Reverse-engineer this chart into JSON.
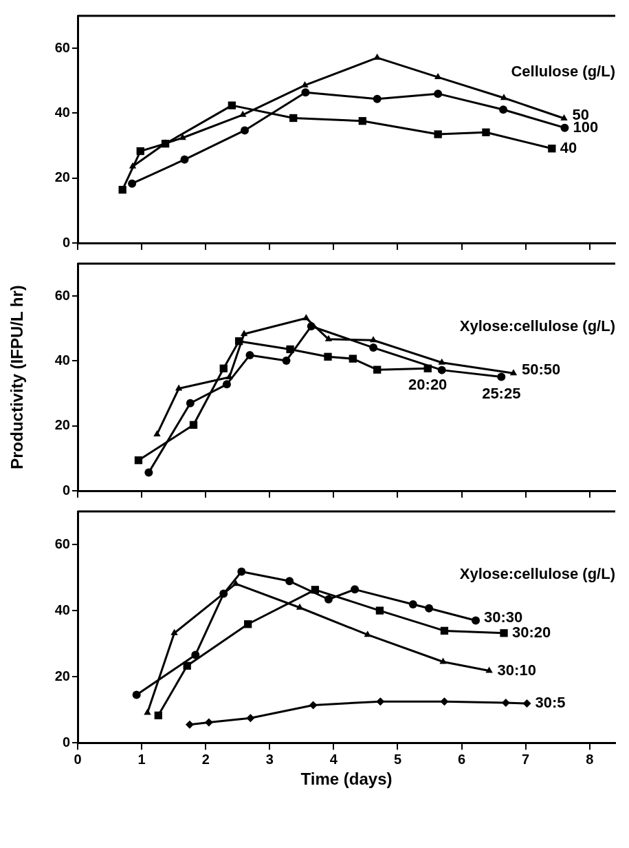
{
  "chart_data": [
    {
      "type": "line",
      "legend_title": "Cellulose (g/L)",
      "xlim": [
        0,
        8.4
      ],
      "xticks": [
        0,
        1,
        2,
        3,
        4,
        5,
        6,
        7,
        8
      ],
      "ylim": [
        0,
        70
      ],
      "yticks": [
        0,
        20,
        40,
        60
      ],
      "tick_labels": "y",
      "line_style": "solid",
      "series": [
        {
          "name": "50",
          "color": "#000000",
          "marker": "triangle",
          "x": [
            0.86,
            1.37,
            1.64,
            2.58,
            3.55,
            4.68,
            5.63,
            6.66,
            7.6
          ],
          "values": [
            23.6,
            30.7,
            32.4,
            39.5,
            48.6,
            57.1,
            51.1,
            44.7,
            38.4
          ]
        },
        {
          "name": "100",
          "color": "#000000",
          "marker": "circle",
          "x": [
            0.85,
            1.67,
            2.61,
            3.56,
            4.68,
            5.63,
            6.65,
            7.61
          ],
          "values": [
            18.3,
            25.7,
            34.7,
            46.4,
            44.4,
            46,
            41.1,
            35.5
          ]
        },
        {
          "name": "40",
          "color": "#000000",
          "marker": "square",
          "x": [
            0.7,
            0.98,
            1.37,
            2.41,
            3.37,
            4.45,
            5.63,
            6.38,
            7.41
          ],
          "values": [
            16.4,
            28.3,
            30.6,
            42.4,
            38.5,
            37.6,
            33.5,
            34.1,
            29.1
          ]
        }
      ]
    },
    {
      "type": "line",
      "legend_title": "Xylose:cellulose (g/L)",
      "ylabel": "Productivity (IFPU/L hr)",
      "xlim": [
        0,
        8.4
      ],
      "xticks": [
        0,
        1,
        2,
        3,
        4,
        5,
        6,
        7,
        8
      ],
      "ylim": [
        0,
        70
      ],
      "yticks": [
        0,
        20,
        40,
        60
      ],
      "tick_labels": "y",
      "line_style": "solid",
      "series": [
        {
          "name": "50:50",
          "color": "#000000",
          "marker": "triangle",
          "x": [
            1.24,
            1.58,
            2.37,
            2.6,
            3.57,
            3.92,
            4.62,
            5.69,
            6.81
          ],
          "values": [
            17.4,
            31.5,
            35,
            48.3,
            53.2,
            46.7,
            46.4,
            39.5,
            36.2
          ]
        },
        {
          "name": "20:20",
          "color": "#000000",
          "marker": "square",
          "x": [
            0.95,
            1.81,
            2.28,
            2.52,
            3.32,
            3.91,
            4.3,
            4.68,
            5.47
          ],
          "values": [
            9.4,
            20.3,
            37.7,
            46.1,
            43.6,
            41.3,
            40.7,
            37.3,
            37.7
          ]
        },
        {
          "name": "25:25",
          "color": "#000000",
          "marker": "circle",
          "x": [
            1.11,
            1.76,
            2.33,
            2.69,
            3.26,
            3.65,
            4.62,
            5.69,
            6.62
          ],
          "values": [
            5.6,
            27,
            32.8,
            41.8,
            40.1,
            50.7,
            44.1,
            37.2,
            35.1
          ]
        }
      ]
    },
    {
      "type": "line",
      "legend_title": "Xylose:cellulose (g/L)",
      "xlabel": "Time (days)",
      "xlim": [
        0,
        8.4
      ],
      "xticks": [
        0,
        1,
        2,
        3,
        4,
        5,
        6,
        7,
        8
      ],
      "ylim": [
        0,
        70
      ],
      "yticks": [
        0,
        20,
        40,
        60
      ],
      "line_style": "solid",
      "series": [
        {
          "name": "30:30",
          "color": "#000000",
          "marker": "circle",
          "x": [
            0.92,
            1.84,
            2.28,
            2.56,
            3.31,
            3.92,
            4.33,
            5.24,
            5.49,
            6.22
          ],
          "values": [
            14.5,
            26.6,
            45.1,
            51.8,
            48.9,
            43.4,
            46.4,
            41.9,
            40.7,
            37
          ]
        },
        {
          "name": "30:20",
          "color": "#000000",
          "marker": "square",
          "x": [
            1.26,
            1.71,
            2.66,
            3.71,
            4.72,
            5.73,
            6.66
          ],
          "values": [
            8.3,
            23.3,
            35.9,
            46.3,
            40,
            33.9,
            33.2
          ]
        },
        {
          "name": "30:10",
          "color": "#000000",
          "marker": "triangle",
          "x": [
            1.09,
            1.51,
            2.47,
            3.47,
            4.53,
            5.71,
            6.43
          ],
          "values": [
            9.1,
            33.2,
            48.1,
            40.9,
            32.7,
            24.5,
            21.8
          ]
        },
        {
          "name": "30:5",
          "color": "#000000",
          "marker": "diamond",
          "x": [
            1.75,
            2.05,
            2.7,
            3.68,
            4.73,
            5.73,
            6.69,
            7.02
          ],
          "values": [
            5.5,
            6.2,
            7.5,
            11.4,
            12.5,
            12.5,
            12.1,
            11.9
          ]
        }
      ]
    }
  ]
}
